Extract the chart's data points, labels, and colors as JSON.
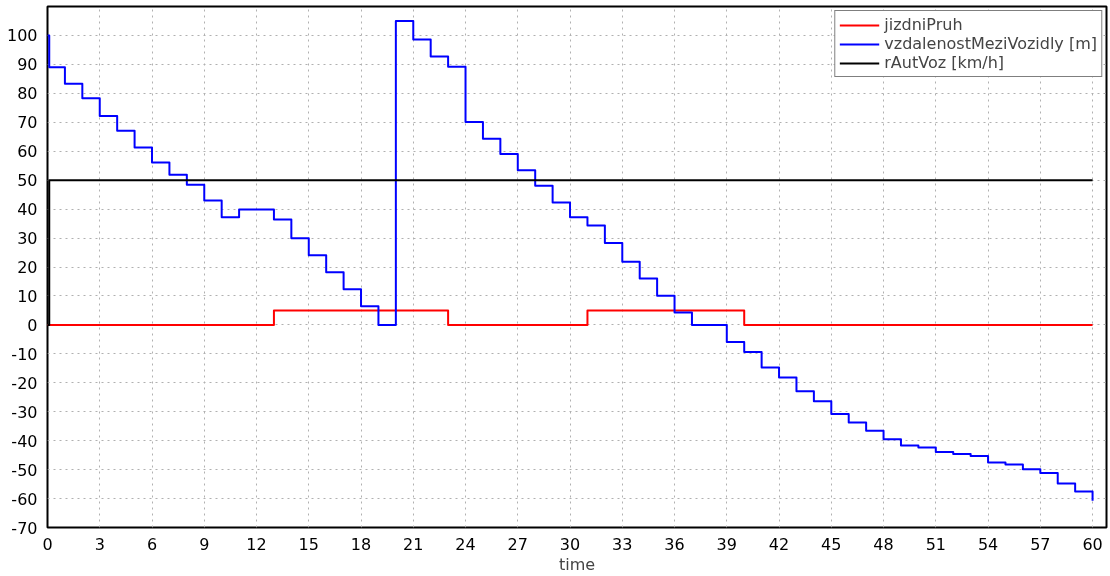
{
  "chart_data": {
    "type": "step",
    "xlabel": "time",
    "xlim": [
      0,
      60.8
    ],
    "ylim": [
      -70,
      110
    ],
    "xticks": [
      0,
      3,
      6,
      9,
      12,
      15,
      18,
      21,
      24,
      27,
      30,
      33,
      36,
      39,
      42,
      45,
      48,
      51,
      54,
      57,
      60
    ],
    "yticks": [
      -70,
      -60,
      -50,
      -40,
      -30,
      -20,
      -10,
      0,
      10,
      20,
      30,
      40,
      50,
      60,
      70,
      80,
      90,
      100
    ],
    "grid": true,
    "legend": "top right",
    "marker": "none",
    "line_style": "solid",
    "series": [
      {
        "name": "jizdniPruh",
        "color": "#ff0000",
        "x": [
          0,
          13,
          23,
          31,
          40,
          60
        ],
        "values": [
          0,
          5,
          0,
          5,
          0,
          0
        ]
      },
      {
        "name": "vzdalenostMeziVozidly [m]",
        "color": "#0000ff",
        "x": [
          0,
          0.1,
          1,
          2,
          3,
          4,
          5,
          6,
          7,
          8,
          9,
          10,
          11,
          13,
          14,
          15,
          16,
          17,
          18,
          19,
          20,
          21,
          22,
          23,
          24,
          25,
          26,
          27,
          28,
          29,
          30,
          31,
          32,
          33,
          34,
          35,
          36,
          37,
          39,
          40,
          41,
          42,
          43,
          44,
          45,
          46,
          47,
          48,
          49,
          50,
          51,
          52,
          53,
          54,
          55,
          56,
          57,
          58,
          59,
          60
        ],
        "values": [
          100,
          89,
          83.3,
          78.3,
          72.2,
          67.1,
          61.3,
          56.1,
          51.9,
          48.4,
          43,
          37.2,
          39.9,
          36.4,
          29.9,
          24.1,
          18.2,
          12.3,
          6.4,
          0,
          105,
          98.6,
          92.7,
          89.2,
          70.1,
          64.3,
          59,
          53.4,
          48.1,
          42.3,
          37.2,
          34.3,
          28.3,
          21.8,
          16,
          10.1,
          4.3,
          0,
          -5.9,
          -9.4,
          -14.7,
          -18.2,
          -22.9,
          -26.4,
          -30.8,
          -33.7,
          -36.6,
          -39.5,
          -41.7,
          -42.4,
          -43.9,
          -44.6,
          -45.3,
          -47.5,
          -48.2,
          -49.9,
          -51.2,
          -54.8,
          -57.6,
          -60.8
        ]
      },
      {
        "name": "rAutVoz [km/h]",
        "color": "#000000",
        "x": [
          0,
          0.1,
          60
        ],
        "values": [
          0,
          50,
          50
        ]
      }
    ]
  }
}
